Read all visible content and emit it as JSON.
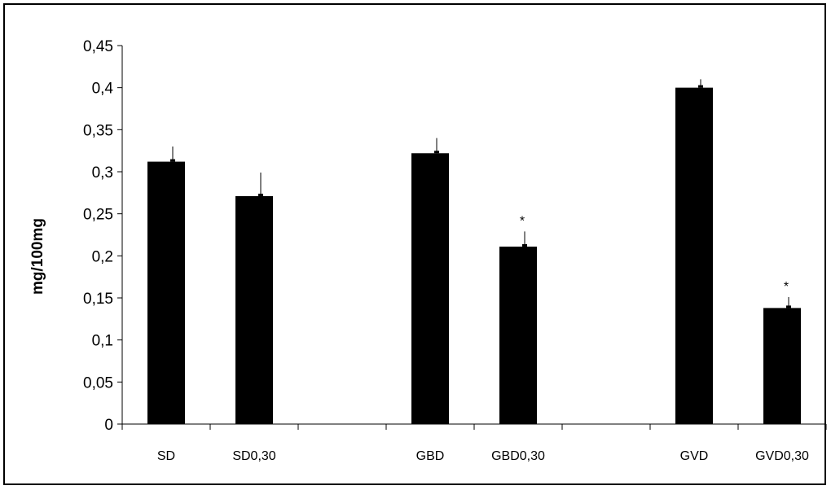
{
  "chart_data": {
    "type": "bar",
    "ylabel": "mg/100mg",
    "ylim": [
      0,
      0.45
    ],
    "yticks": [
      "0",
      "0,05",
      "0,1",
      "0,15",
      "0,2",
      "0,25",
      "0,3",
      "0,35",
      "0,4",
      "0,45"
    ],
    "slots": [
      "SD",
      "SD0,30",
      "",
      "GBD",
      "GBD0,30",
      "",
      "GVD",
      "GVD0,30"
    ],
    "categories": [
      "SD",
      "SD0,30",
      "GBD",
      "GBD0,30",
      "GVD",
      "GVD0,30"
    ],
    "values": [
      0.312,
      0.271,
      0.322,
      0.211,
      0.4,
      0.138
    ],
    "errors": [
      0.018,
      0.028,
      0.018,
      0.018,
      0.01,
      0.013
    ],
    "annotations": [
      "",
      "",
      "",
      "*",
      "",
      "*"
    ],
    "bar_color": "#000000",
    "grid": false,
    "legend": "none"
  }
}
